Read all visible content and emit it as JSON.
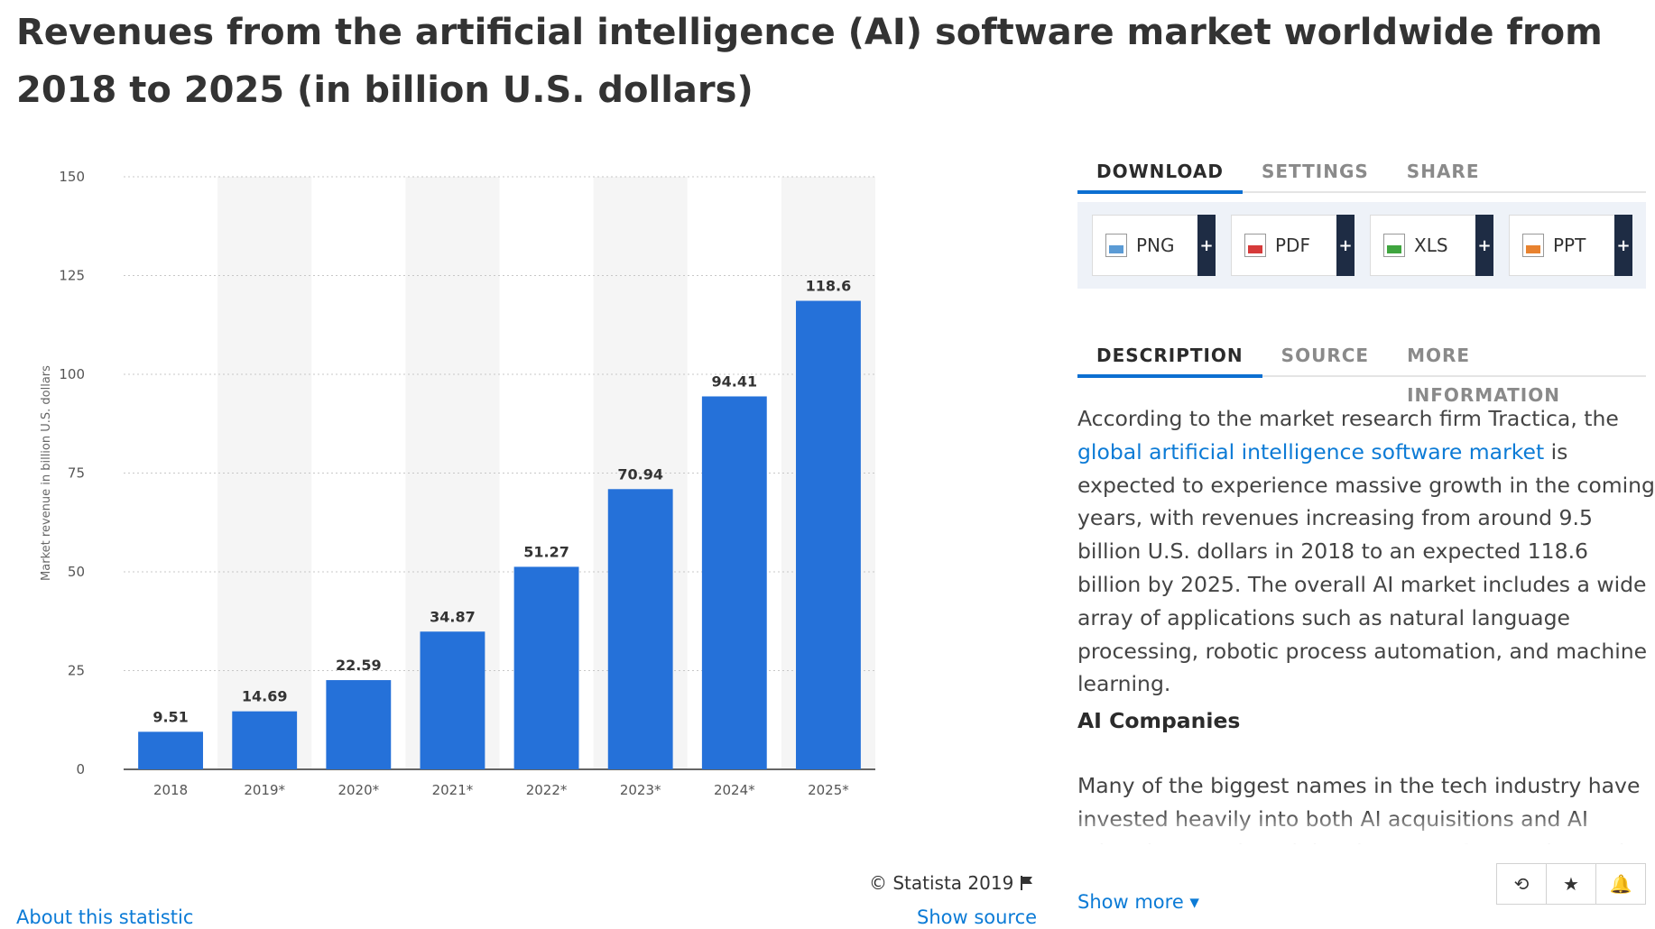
{
  "title": "Revenues from the artificial intelligence (AI) software market worldwide from 2018 to 2025 (in billion U.S. dollars)",
  "chart_data": {
    "type": "bar",
    "categories": [
      "2018",
      "2019*",
      "2020*",
      "2021*",
      "2022*",
      "2023*",
      "2024*",
      "2025*"
    ],
    "values": [
      9.51,
      14.69,
      22.59,
      34.87,
      51.27,
      70.94,
      94.41,
      118.6
    ],
    "value_labels": [
      "9.51",
      "14.69",
      "22.59",
      "34.87",
      "51.27",
      "70.94",
      "94.41",
      "118.6"
    ],
    "ylabel": "Market revenue in billion U.S. dollars",
    "xlabel": "",
    "ylim": [
      0,
      150
    ],
    "yticks": [
      "0",
      "25",
      "50",
      "75",
      "100",
      "125",
      "150"
    ],
    "grid": true,
    "bar_color": "#2571d9",
    "band_color": "#f5f5f5"
  },
  "copyright": "© Statista 2019",
  "about_link": "About this statistic",
  "show_source": "Show source",
  "download_tabs": [
    "DOWNLOAD",
    "SETTINGS",
    "SHARE"
  ],
  "download_buttons": [
    {
      "label": "PNG",
      "icon": "png-file-icon"
    },
    {
      "label": "PDF",
      "icon": "pdf-file-icon"
    },
    {
      "label": "XLS",
      "icon": "xls-file-icon"
    },
    {
      "label": "PPT",
      "icon": "ppt-file-icon"
    }
  ],
  "plus_glyph": "+",
  "description_tabs": [
    "DESCRIPTION",
    "SOURCE",
    "MORE INFORMATION"
  ],
  "description": {
    "intro_before_link": "According to the market research firm Tractica, the ",
    "link_text": "global artificial intelligence software market",
    "intro_after_link": " is expected to experience massive growth in the coming years, with revenues increasing from around 9.5 billion U.S. dollars in 2018 to an expected 118.6 billion by 2025. The overall AI market includes a wide array of applications such as natural language processing, robotic process automation, and machine learning.",
    "heading": "AI Companies",
    "paragraph2": "Many of the biggest names in the tech industry have invested heavily into both AI acquisitions and AI related research and development. Companies such"
  },
  "show_more": "Show more ▾",
  "action_icons": {
    "history": "⟲",
    "star": "★",
    "bell": "🔔"
  },
  "colors": {
    "accent": "#0c6fd1",
    "link": "#0c7bd6",
    "dark_button": "#1e2c44"
  }
}
